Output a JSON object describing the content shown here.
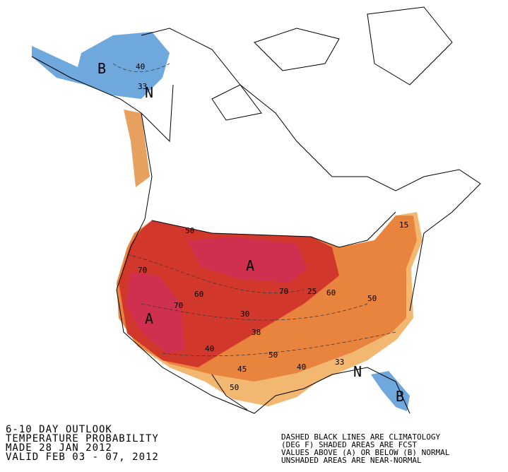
{
  "header": {
    "lines": [
      "6-10 DAY OUTLOOK",
      "TEMPERATURE PROBABILITY",
      "MADE  28 JAN 2012",
      "VALID  FEB 03 - 07, 2012"
    ]
  },
  "legend": {
    "lines": [
      "DASHED BLACK LINES ARE CLIMATOLOGY",
      "(DEG F) SHADED AREAS ARE FCST",
      "VALUES ABOVE (A) OR BELOW (B) NORMAL",
      "UNSHADED AREAS ARE NEAR-NORMAL"
    ]
  },
  "map": {
    "labels": [
      "B",
      "N",
      "A",
      "A",
      "N",
      "B",
      "40",
      "33",
      "50",
      "70",
      "70",
      "70",
      "60",
      "50",
      "40",
      "33",
      "38",
      "45",
      "40",
      "50",
      "60",
      "30",
      "50",
      "15",
      "25"
    ]
  }
}
